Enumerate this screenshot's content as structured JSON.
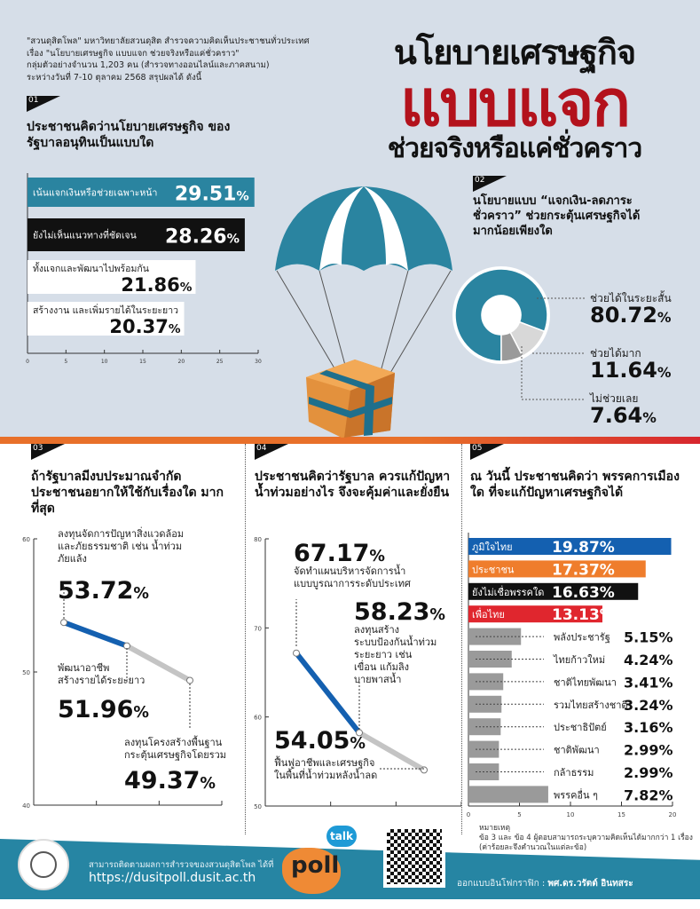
{
  "intro": [
    "\"สวนดุสิตโพล\" มหาวิทยาลัยสวนดุสิต สำรวจความคิดเห็นประชาชนทั่วประเทศ",
    "เรื่อง \"นโยบายเศรษฐกิจ แบบแจก ช่วยจริงหรือแค่ชั่วคราว\"",
    "กลุ่มตัวอย่างจำนวน 1,203 คน (สำรวจทางออนไลน์และภาคสนาม)",
    "ระหว่างวันที่ 7-10 ตุลาคม 2568 สรุปผลได้ ดังนี้"
  ],
  "title": {
    "line1": "นโยบายเศรษฐกิจ",
    "line2": "แบบแจก",
    "line3": "ช่วยจริงหรือแค่ชั่วคราว"
  },
  "colors": {
    "teal": "#2a84a0",
    "red": "#b3121c",
    "blue": "#1460b0",
    "orange": "#ef7d2c",
    "black": "#111111",
    "pheuthai": "#e0262e",
    "grey": "#9a9a9a",
    "lightgrey": "#d8d8d8"
  },
  "chart_data": [
    {
      "id": "01",
      "type": "bar",
      "orientation": "horizontal",
      "title": "ประชาชนคิดว่านโยบายเศรษฐกิจ ของรัฐบาลอนุทินเป็นแบบใด",
      "categories": [
        "เน้นแจกเงินหรือช่วยเฉพาะหน้า",
        "ยังไม่เห็นแนวทางที่ชัดเจน",
        "ทั้งแจกและพัฒนาไปพร้อมกัน",
        "สร้างงาน และเพิ่มรายได้ในระยะยาว"
      ],
      "values": [
        29.51,
        28.26,
        21.86,
        20.37
      ],
      "labels": [
        "29.51",
        "28.26",
        "21.86",
        "20.37"
      ],
      "xlim": [
        0,
        30
      ],
      "xticks": [
        0,
        5,
        10,
        15,
        20,
        25,
        30
      ]
    },
    {
      "id": "02",
      "type": "pie",
      "donut": true,
      "title": "นโยบายแบบ “แจกเงิน-ลดภาระชั่วคราว” ช่วยกระตุ้นเศรษฐกิจได้ มากน้อยเพียงใด",
      "categories": [
        "ช่วยได้ในระยะสั้น",
        "ช่วยได้มาก",
        "ไม่ช่วยเลย"
      ],
      "values": [
        80.72,
        11.64,
        7.64
      ],
      "labels": [
        "80.72",
        "11.64",
        "7.64"
      ]
    },
    {
      "id": "03",
      "type": "line",
      "title": "ถ้ารัฐบาลมีงบประมาณจำกัด ประชาชนอยากให้ใช้กับเรื่องใด มากที่สุด",
      "categories": [
        "ลงทุนจัดการปัญหาสิ่งแวดล้อม และภัยธรรมชาติ เช่น น้ำท่วม ภัยแล้ง",
        "พัฒนาอาชีพ สร้างรายได้ระยะยาว",
        "ลงทุนโครงสร้างพื้นฐาน กระตุ้นเศรษฐกิจโดยรวม"
      ],
      "values": [
        53.72,
        51.96,
        49.37
      ],
      "labels": [
        "53.72",
        "51.96",
        "49.37"
      ],
      "ylim": [
        40,
        60
      ],
      "yticks": [
        40,
        50,
        60
      ]
    },
    {
      "id": "04",
      "type": "line",
      "title": "ประชาชนคิดว่ารัฐบาล ควรแก้ปัญหาน้ำท่วมอย่างไร จึงจะคุ้มค่าและยั่งยืน",
      "categories": [
        "จัดทำแผนบริหารจัดการน้ำ แบบบูรณาการระดับประเทศ",
        "ลงทุนสร้าง ระบบป้องกันน้ำท่วม ระยะยาว เช่น เขื่อน แก้มลิง บายพาสน้ำ",
        "ฟื้นฟูอาชีพและเศรษฐกิจ ในพื้นที่น้ำท่วมหลังน้ำลด"
      ],
      "values": [
        67.17,
        58.23,
        54.05
      ],
      "labels": [
        "67.17",
        "58.23",
        "54.05"
      ],
      "ylim": [
        50,
        80
      ],
      "yticks": [
        50,
        60,
        70,
        80
      ]
    },
    {
      "id": "05",
      "type": "bar",
      "orientation": "horizontal",
      "title": "ณ วันนี้ ประชาชนคิดว่า พรรคการเมืองใด ที่จะแก้ปัญหาเศรษฐกิจได้",
      "categories": [
        "ภูมิใจไทย",
        "ประชาชน",
        "ยังไม่เชื่อพรรคใด",
        "เพื่อไทย",
        "พลังประชารัฐ",
        "ไทยก้าวใหม่",
        "ชาติไทยพัฒนา",
        "รวมไทยสร้างชาติ",
        "ประชาธิปัตย์",
        "ชาติพัฒนา",
        "กล้าธรรม",
        "พรรคอื่น ๆ"
      ],
      "values": [
        19.87,
        17.37,
        16.63,
        13.13,
        5.15,
        4.24,
        3.41,
        3.24,
        3.16,
        2.99,
        2.99,
        7.82
      ],
      "labels": [
        "19.87",
        "17.37",
        "16.63",
        "13.13",
        "5.15",
        "4.24",
        "3.41",
        "3.24",
        "3.16",
        "2.99",
        "2.99",
        "7.82"
      ],
      "xlim": [
        0,
        20
      ],
      "xticks": [
        0,
        5,
        10,
        15,
        20
      ]
    }
  ],
  "pct_sign": "%",
  "note": {
    "heading": "หมายเหตุ",
    "line1": "ข้อ 3 และ ข้อ 4 ผู้ตอบสามารถระบุความคิดเห็นได้มากกว่า 1 เรื่อง",
    "line2": "(ค่าร้อยละจึงคำนวณในแต่ละข้อ)"
  },
  "footer": {
    "follow": "สามารถติดตามผลการสำรวจของสวนดุสิตโพล ได้ที่",
    "url": "https://dusitpoll.dusit.ac.th",
    "poll_logo": "poll",
    "talk": "talk",
    "credit_label": "ออกแบบอินโฟกราฟิก :",
    "credit_name": "พศ.ดร.วรัตต์ อินทสระ",
    "seal_text": "มหาวิทยาลัยสวนดุสิต SUAN DUSIT UNIVERSITY"
  }
}
